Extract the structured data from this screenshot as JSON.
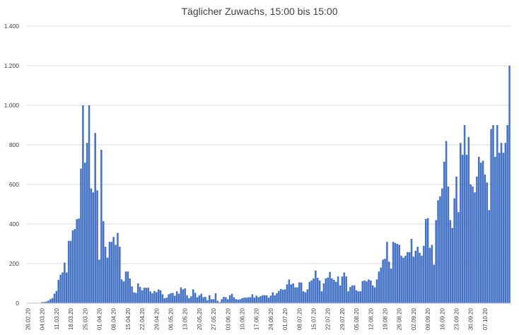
{
  "chart_data": {
    "type": "bar",
    "title": "Täglicher Zuwachs, 15:00 bis 15:00",
    "xlabel": "",
    "ylabel": "",
    "ylim": [
      0,
      1400
    ],
    "yticks": [
      0,
      200,
      400,
      600,
      800,
      1000,
      1200,
      1400
    ],
    "ytick_labels": [
      "0",
      "200",
      "400",
      "600",
      "800",
      "1.000",
      "1.200",
      "1.400"
    ],
    "grid": true,
    "legend": "none",
    "bar_color": "#4472c4",
    "x_tick_labels": [
      "26.02.20",
      "04.03.20",
      "11.03.20",
      "18.03.20",
      "25.03.20",
      "01.04.20",
      "08.04.20",
      "15.04.20",
      "22.04.20",
      "29.04.20",
      "06.05.20",
      "13.05.20",
      "20.05.20",
      "27.05.20",
      "03.06.20",
      "10.06.20",
      "17.06.20",
      "24.06.20",
      "01.07.20",
      "08.07.20",
      "15.07.20",
      "22.07.20",
      "29.07.20",
      "05.08.20",
      "12.08.20",
      "19.08.20",
      "26.08.20",
      "02.09.20",
      "09.09.20",
      "16.09.20",
      "23.09.20",
      "30.09.20",
      "07.10.20"
    ],
    "x_tick_every": 7,
    "values": [
      0,
      0,
      0,
      0,
      0,
      0,
      0,
      6,
      6,
      8,
      12,
      20,
      26,
      48,
      62,
      118,
      144,
      156,
      205,
      155,
      315,
      315,
      368,
      375,
      425,
      428,
      680,
      1000,
      710,
      810,
      1000,
      580,
      560,
      860,
      570,
      220,
      775,
      415,
      285,
      230,
      310,
      310,
      335,
      295,
      355,
      285,
      120,
      110,
      160,
      160,
      125,
      85,
      55,
      52,
      100,
      82,
      65,
      78,
      78,
      78,
      60,
      50,
      62,
      55,
      70,
      65,
      45,
      25,
      28,
      45,
      50,
      52,
      38,
      60,
      48,
      80,
      70,
      75,
      40,
      25,
      35,
      70,
      52,
      30,
      40,
      48,
      30,
      32,
      15,
      40,
      20,
      20,
      50,
      12,
      5,
      20,
      32,
      30,
      20,
      40,
      48,
      30,
      20,
      18,
      20,
      25,
      28,
      28,
      30,
      30,
      45,
      28,
      38,
      30,
      35,
      40,
      40,
      40,
      28,
      38,
      55,
      40,
      50,
      62,
      72,
      68,
      70,
      95,
      120,
      95,
      100,
      80,
      80,
      105,
      105,
      60,
      55,
      70,
      108,
      115,
      125,
      165,
      128,
      115,
      60,
      100,
      125,
      130,
      158,
      125,
      118,
      108,
      135,
      90,
      135,
      155,
      135,
      60,
      82,
      90,
      90,
      65,
      60,
      60,
      112,
      115,
      110,
      120,
      115,
      90,
      80,
      120,
      160,
      180,
      220,
      225,
      310,
      210,
      175,
      310,
      305,
      300,
      295,
      240,
      230,
      240,
      258,
      258,
      325,
      235,
      265,
      285,
      255,
      240,
      290,
      425,
      430,
      280,
      295,
      195,
      420,
      520,
      540,
      580,
      715,
      820,
      590,
      420,
      380,
      530,
      640,
      460,
      810,
      750,
      900,
      750,
      840,
      600,
      590,
      560,
      640,
      740,
      710,
      720,
      650,
      610,
      470,
      880,
      900,
      740,
      900,
      760,
      810,
      760,
      810,
      900,
      1200
    ]
  }
}
